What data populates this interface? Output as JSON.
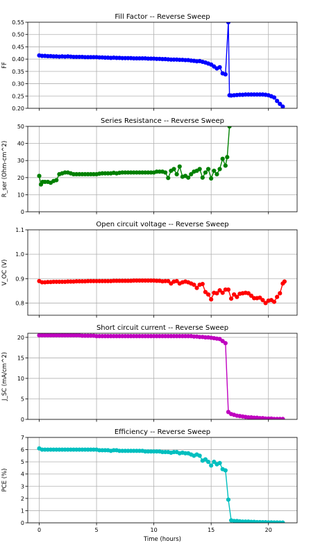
{
  "figure": {
    "xlabel": "Time (hours)"
  },
  "chart_data": [
    {
      "type": "line",
      "title": "Fill Factor -- Reverse Sweep",
      "ylabel": "FF",
      "color": "#0000ff",
      "xlim": [
        -1,
        22.5
      ],
      "ylim": [
        0.2,
        0.55
      ],
      "yticks": [
        "0.20",
        "0.25",
        "0.30",
        "0.35",
        "0.40",
        "0.45",
        "0.50",
        "0.55"
      ],
      "xticks": [
        0,
        5,
        10,
        15,
        20
      ],
      "show_xticklabels": false,
      "grid": true,
      "series": [
        {
          "x": [
            0,
            0.25,
            0.5,
            0.75,
            1,
            1.25,
            1.5,
            1.75,
            2,
            2.25,
            2.5,
            2.75,
            3,
            3.25,
            3.5,
            3.75,
            4,
            4.25,
            4.5,
            4.75,
            5,
            5.25,
            5.5,
            5.75,
            6,
            6.25,
            6.5,
            6.75,
            7,
            7.25,
            7.5,
            7.75,
            8,
            8.25,
            8.5,
            8.75,
            9,
            9.25,
            9.5,
            9.75,
            10,
            10.25,
            10.5,
            10.75,
            11,
            11.25,
            11.5,
            11.75,
            12,
            12.25,
            12.5,
            12.75,
            13,
            13.25,
            13.5,
            13.75,
            14,
            14.25,
            14.5,
            14.75,
            15,
            15.25,
            15.5,
            15.75,
            16,
            16.25,
            16.5,
            16.6,
            16.75,
            17,
            17.25,
            17.5,
            17.75,
            18,
            18.25,
            18.5,
            18.75,
            19,
            19.25,
            19.5,
            19.75,
            20,
            20.25,
            20.5,
            20.75,
            21,
            21.25
          ],
          "y": [
            0.415,
            0.413,
            0.413,
            0.412,
            0.412,
            0.411,
            0.411,
            0.41,
            0.411,
            0.41,
            0.411,
            0.41,
            0.409,
            0.409,
            0.409,
            0.409,
            0.408,
            0.408,
            0.408,
            0.408,
            0.408,
            0.407,
            0.407,
            0.406,
            0.406,
            0.405,
            0.406,
            0.405,
            0.405,
            0.404,
            0.404,
            0.404,
            0.404,
            0.403,
            0.403,
            0.403,
            0.403,
            0.403,
            0.402,
            0.402,
            0.402,
            0.401,
            0.401,
            0.4,
            0.4,
            0.399,
            0.398,
            0.398,
            0.398,
            0.397,
            0.397,
            0.396,
            0.396,
            0.394,
            0.393,
            0.391,
            0.392,
            0.389,
            0.386,
            0.382,
            0.378,
            0.37,
            0.362,
            0.367,
            0.342,
            0.338,
            0.55,
            0.253,
            0.252,
            0.253,
            0.254,
            0.255,
            0.255,
            0.256,
            0.256,
            0.256,
            0.256,
            0.256,
            0.256,
            0.256,
            0.255,
            0.253,
            0.249,
            0.244,
            0.23,
            0.218,
            0.207
          ]
        }
      ]
    },
    {
      "type": "line",
      "title": "Series Resistance -- Reverse Sweep",
      "ylabel": "R_ser (Ohm-cm^2)",
      "color": "#008000",
      "xlim": [
        -1,
        22.5
      ],
      "ylim": [
        0,
        50
      ],
      "yticks": [
        "0",
        "10",
        "20",
        "30",
        "40",
        "50"
      ],
      "xticks": [
        0,
        5,
        10,
        15,
        20
      ],
      "show_xticklabels": false,
      "grid": true,
      "series": [
        {
          "x": [
            0,
            0.15,
            0.3,
            0.5,
            0.75,
            1,
            1.25,
            1.5,
            1.75,
            2,
            2.25,
            2.5,
            2.75,
            3,
            3.25,
            3.5,
            3.75,
            4,
            4.25,
            4.5,
            4.75,
            5,
            5.25,
            5.5,
            5.75,
            6,
            6.25,
            6.5,
            6.75,
            7,
            7.25,
            7.5,
            7.75,
            8,
            8.25,
            8.5,
            8.75,
            9,
            9.25,
            9.5,
            9.75,
            10,
            10.25,
            10.5,
            10.75,
            11,
            11.25,
            11.5,
            11.75,
            12,
            12.25,
            12.5,
            12.75,
            13,
            13.25,
            13.5,
            13.75,
            14,
            14.25,
            14.5,
            14.75,
            15,
            15.25,
            15.5,
            15.75,
            16,
            16.25,
            16.4,
            16.6
          ],
          "y": [
            21.0,
            16.0,
            17.5,
            17.5,
            17.5,
            17.0,
            18.0,
            18.5,
            22.0,
            22.5,
            23.0,
            23.0,
            22.5,
            22.0,
            22.0,
            22.0,
            22.0,
            22.0,
            22.0,
            22.0,
            22.0,
            22.0,
            22.3,
            22.5,
            22.5,
            22.5,
            22.5,
            22.8,
            22.5,
            22.8,
            23.0,
            23.0,
            23.0,
            23.0,
            23.0,
            23.0,
            23.0,
            23.0,
            23.0,
            23.0,
            23.0,
            23.0,
            23.5,
            23.5,
            23.5,
            23.0,
            19.8,
            24.0,
            25.0,
            22.0,
            26.5,
            20.5,
            21.0,
            20.0,
            22.0,
            23.5,
            24.0,
            25.0,
            20.0,
            23.0,
            25.0,
            19.5,
            24.0,
            22.0,
            25.0,
            31.0,
            27.0,
            32.0,
            50.0
          ]
        }
      ]
    },
    {
      "type": "line",
      "title": "Open circuit voltage -- Reverse Sweep",
      "ylabel": "V_OC (V)",
      "color": "#ff0000",
      "xlim": [
        -1,
        22.5
      ],
      "ylim": [
        0.75,
        1.1
      ],
      "yticks": [
        "0.8",
        "0.9",
        "1.0",
        "1.1"
      ],
      "xticks": [
        0,
        5,
        10,
        15,
        20
      ],
      "show_xticklabels": false,
      "grid": true,
      "series": [
        {
          "x": [
            0,
            0.25,
            0.5,
            0.75,
            1,
            1.25,
            1.5,
            1.75,
            2,
            2.25,
            2.5,
            2.75,
            3,
            3.25,
            3.5,
            3.75,
            4,
            4.25,
            4.5,
            4.75,
            5,
            5.25,
            5.5,
            5.75,
            6,
            6.25,
            6.5,
            6.75,
            7,
            7.25,
            7.5,
            7.75,
            8,
            8.25,
            8.5,
            8.75,
            9,
            9.25,
            9.5,
            9.75,
            10,
            10.25,
            10.5,
            10.75,
            11,
            11.25,
            11.5,
            11.75,
            12,
            12.25,
            12.5,
            12.75,
            13,
            13.25,
            13.5,
            13.75,
            14,
            14.25,
            14.5,
            14.75,
            15,
            15.25,
            15.5,
            15.75,
            16,
            16.25,
            16.5,
            16.75,
            17,
            17.25,
            17.5,
            17.75,
            18,
            18.25,
            18.5,
            18.75,
            19,
            19.25,
            19.5,
            19.75,
            20,
            20.25,
            20.5,
            20.75,
            21,
            21.25,
            21.4
          ],
          "y": [
            0.89,
            0.885,
            0.885,
            0.886,
            0.886,
            0.887,
            0.887,
            0.887,
            0.887,
            0.887,
            0.888,
            0.888,
            0.888,
            0.889,
            0.889,
            0.889,
            0.889,
            0.89,
            0.89,
            0.89,
            0.89,
            0.89,
            0.89,
            0.89,
            0.89,
            0.89,
            0.891,
            0.891,
            0.891,
            0.891,
            0.891,
            0.891,
            0.891,
            0.892,
            0.892,
            0.892,
            0.892,
            0.892,
            0.892,
            0.892,
            0.892,
            0.891,
            0.891,
            0.889,
            0.89,
            0.89,
            0.88,
            0.888,
            0.89,
            0.88,
            0.885,
            0.888,
            0.885,
            0.88,
            0.875,
            0.862,
            0.875,
            0.878,
            0.845,
            0.835,
            0.815,
            0.842,
            0.84,
            0.852,
            0.842,
            0.855,
            0.855,
            0.818,
            0.835,
            0.825,
            0.838,
            0.84,
            0.842,
            0.84,
            0.83,
            0.82,
            0.82,
            0.822,
            0.812,
            0.8,
            0.81,
            0.812,
            0.805,
            0.825,
            0.84,
            0.88,
            0.888
          ]
        }
      ]
    },
    {
      "type": "line",
      "title": "Short circuit current -- Reverse Sweep",
      "ylabel": "J_SC (mA/cm^2)",
      "color": "#bf00bf",
      "xlim": [
        -1,
        22.5
      ],
      "ylim": [
        0,
        21
      ],
      "yticks": [
        "0",
        "5",
        "10",
        "15",
        "20"
      ],
      "xticks": [
        0,
        5,
        10,
        15,
        20
      ],
      "show_xticklabels": false,
      "grid": true,
      "series": [
        {
          "x": [
            0,
            0.25,
            0.5,
            0.75,
            1,
            1.25,
            1.5,
            1.75,
            2,
            2.25,
            2.5,
            2.75,
            3,
            3.25,
            3.5,
            3.75,
            4,
            4.25,
            4.5,
            4.75,
            5,
            5.25,
            5.5,
            5.75,
            6,
            6.25,
            6.5,
            6.75,
            7,
            7.25,
            7.5,
            7.75,
            8,
            8.25,
            8.5,
            8.75,
            9,
            9.25,
            9.5,
            9.75,
            10,
            10.25,
            10.5,
            10.75,
            11,
            11.25,
            11.5,
            11.75,
            12,
            12.25,
            12.5,
            12.75,
            13,
            13.25,
            13.5,
            13.75,
            14,
            14.25,
            14.5,
            14.75,
            15,
            15.25,
            15.5,
            15.75,
            16,
            16.25,
            16.5,
            16.75,
            17,
            17.25,
            17.5,
            17.75,
            18,
            18.25,
            18.5,
            18.75,
            19,
            19.25,
            19.5,
            19.75,
            20,
            20.25,
            20.5,
            20.75,
            21,
            21.25
          ],
          "y": [
            20.5,
            20.5,
            20.5,
            20.5,
            20.5,
            20.5,
            20.5,
            20.5,
            20.5,
            20.5,
            20.5,
            20.5,
            20.5,
            20.5,
            20.5,
            20.4,
            20.4,
            20.4,
            20.4,
            20.4,
            20.3,
            20.3,
            20.3,
            20.3,
            20.3,
            20.3,
            20.3,
            20.3,
            20.3,
            20.3,
            20.3,
            20.3,
            20.3,
            20.3,
            20.3,
            20.3,
            20.3,
            20.3,
            20.3,
            20.3,
            20.3,
            20.3,
            20.3,
            20.3,
            20.3,
            20.3,
            20.3,
            20.3,
            20.3,
            20.3,
            20.3,
            20.3,
            20.3,
            20.3,
            20.2,
            20.2,
            20.1,
            20.1,
            20.0,
            20.0,
            19.9,
            19.8,
            19.7,
            19.6,
            19.1,
            18.6,
            1.8,
            1.3,
            1.1,
            0.9,
            0.8,
            0.7,
            0.6,
            0.5,
            0.5,
            0.4,
            0.4,
            0.3,
            0.3,
            0.2,
            0.2,
            0.2,
            0.1,
            0.1,
            0.1,
            0.1
          ]
        }
      ]
    },
    {
      "type": "line",
      "title": "Efficiency -- Reverse Sweep",
      "ylabel": "PCE (%)",
      "color": "#00bfbf",
      "xlim": [
        -1,
        22.5
      ],
      "ylim": [
        0,
        7
      ],
      "yticks": [
        "0",
        "1",
        "2",
        "3",
        "4",
        "5",
        "6",
        "7"
      ],
      "xticks": [
        0,
        5,
        10,
        15,
        20
      ],
      "xticklabels": [
        "0",
        "5",
        "10",
        "15",
        "20"
      ],
      "show_xticklabels": true,
      "grid": true,
      "series": [
        {
          "x": [
            0,
            0.25,
            0.5,
            0.75,
            1,
            1.25,
            1.5,
            1.75,
            2,
            2.25,
            2.5,
            2.75,
            3,
            3.25,
            3.5,
            3.75,
            4,
            4.25,
            4.5,
            4.75,
            5,
            5.25,
            5.5,
            5.75,
            6,
            6.25,
            6.5,
            6.75,
            7,
            7.25,
            7.5,
            7.75,
            8,
            8.25,
            8.5,
            8.75,
            9,
            9.25,
            9.5,
            9.75,
            10,
            10.25,
            10.5,
            10.75,
            11,
            11.25,
            11.5,
            11.75,
            12,
            12.25,
            12.5,
            12.75,
            13,
            13.25,
            13.5,
            13.75,
            14,
            14.25,
            14.5,
            14.75,
            15,
            15.25,
            15.5,
            15.75,
            16,
            16.25,
            16.5,
            16.75,
            17,
            17.25,
            17.5,
            17.75,
            18,
            18.25,
            18.5,
            18.75,
            19,
            19.25,
            19.5,
            19.75,
            20,
            20.25,
            20.5,
            20.75,
            21,
            21.25
          ],
          "y": [
            6.1,
            6.0,
            6.0,
            6.0,
            6.0,
            6.0,
            6.0,
            6.0,
            6.0,
            6.0,
            6.0,
            6.0,
            6.0,
            6.0,
            6.0,
            6.0,
            6.0,
            6.0,
            6.0,
            6.0,
            6.0,
            5.95,
            5.95,
            5.95,
            5.95,
            5.9,
            5.95,
            5.95,
            5.9,
            5.9,
            5.9,
            5.9,
            5.9,
            5.9,
            5.9,
            5.9,
            5.9,
            5.85,
            5.85,
            5.85,
            5.85,
            5.85,
            5.85,
            5.8,
            5.8,
            5.8,
            5.75,
            5.8,
            5.8,
            5.7,
            5.75,
            5.7,
            5.7,
            5.6,
            5.5,
            5.6,
            5.5,
            5.1,
            5.2,
            5.0,
            4.7,
            5.0,
            4.8,
            4.9,
            4.4,
            4.3,
            1.9,
            0.2,
            0.15,
            0.15,
            0.12,
            0.1,
            0.1,
            0.1,
            0.08,
            0.08,
            0.06,
            0.06,
            0.05,
            0.05,
            0.04,
            0.04,
            0.03,
            0.03,
            0.02,
            0.02
          ]
        }
      ]
    }
  ]
}
